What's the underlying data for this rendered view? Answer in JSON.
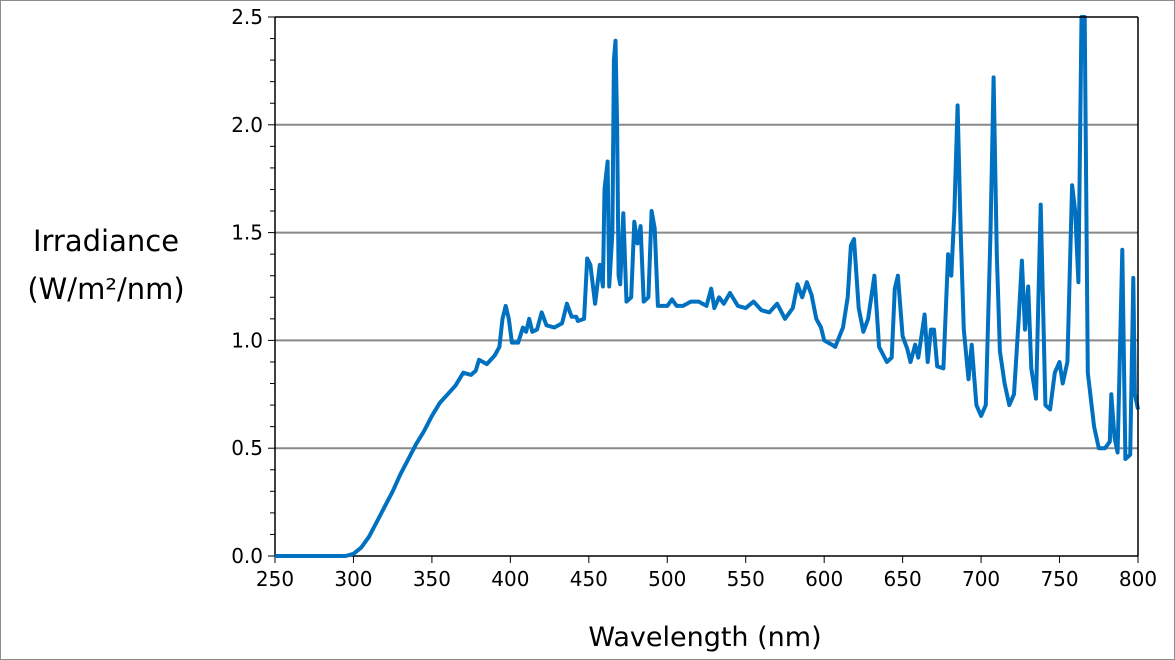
{
  "chart_data": {
    "type": "line",
    "title": "",
    "xlabel": "Wavelength (nm)",
    "ylabel_line1": "Irradiance",
    "ylabel_line2": "(W/m²/nm)",
    "xlim": [
      250,
      800
    ],
    "ylim": [
      0,
      2.5
    ],
    "xticks": [
      "250",
      "300",
      "350",
      "400",
      "450",
      "500",
      "550",
      "600",
      "650",
      "700",
      "750",
      "800"
    ],
    "yticks": [
      "0.0",
      "0.5",
      "1.0",
      "1.5",
      "2.0",
      "2.5"
    ],
    "grid": "horizontal",
    "legend": "none",
    "line_color": "#0070c0",
    "series": [
      {
        "x": [
          250,
          295,
          300,
          305,
          310,
          315,
          320,
          325,
          330,
          335,
          340,
          345,
          350,
          355,
          360,
          365,
          370,
          375,
          378,
          380,
          385,
          390,
          393,
          395,
          397,
          399,
          401,
          405,
          408,
          410,
          412,
          414,
          417,
          420,
          423,
          428,
          433,
          436,
          439,
          442,
          443,
          447,
          449,
          451,
          454,
          457,
          459,
          460,
          462,
          463,
          465,
          466,
          467,
          468,
          469,
          470,
          472,
          474,
          477,
          479,
          481,
          483,
          485,
          488,
          490,
          492,
          494,
          500,
          503,
          506,
          510,
          515,
          520,
          525,
          528,
          530,
          533,
          536,
          540,
          545,
          550,
          555,
          560,
          565,
          570,
          575,
          580,
          583,
          586,
          589,
          592,
          595,
          598,
          600,
          605,
          607,
          612,
          615,
          617,
          619,
          622,
          625,
          628,
          632,
          635,
          640,
          643,
          645,
          647,
          650,
          653,
          655,
          658,
          660,
          664,
          666,
          668,
          670,
          672,
          676,
          679,
          681,
          683,
          685,
          687,
          689,
          692,
          694,
          697,
          700,
          703,
          706,
          708,
          710,
          712,
          715,
          718,
          721,
          724,
          726,
          728,
          730,
          732,
          735,
          738,
          741,
          744,
          747,
          750,
          752,
          755,
          758,
          760,
          762,
          764,
          766,
          768,
          772,
          775,
          779,
          782,
          783,
          785,
          787,
          790,
          792,
          795,
          797,
          798,
          800
        ],
        "y": [
          0,
          0,
          0.01,
          0.04,
          0.09,
          0.16,
          0.23,
          0.3,
          0.38,
          0.45,
          0.52,
          0.58,
          0.65,
          0.71,
          0.75,
          0.79,
          0.85,
          0.84,
          0.86,
          0.91,
          0.89,
          0.93,
          0.97,
          1.1,
          1.16,
          1.1,
          0.99,
          0.99,
          1.06,
          1.04,
          1.1,
          1.04,
          1.05,
          1.13,
          1.07,
          1.06,
          1.08,
          1.17,
          1.11,
          1.11,
          1.09,
          1.1,
          1.38,
          1.35,
          1.17,
          1.35,
          1.25,
          1.7,
          1.83,
          1.25,
          1.5,
          2.3,
          2.39,
          2.0,
          1.3,
          1.26,
          1.59,
          1.18,
          1.2,
          1.55,
          1.45,
          1.53,
          1.18,
          1.2,
          1.6,
          1.52,
          1.16,
          1.16,
          1.19,
          1.16,
          1.16,
          1.18,
          1.18,
          1.16,
          1.24,
          1.15,
          1.2,
          1.17,
          1.22,
          1.16,
          1.15,
          1.18,
          1.14,
          1.13,
          1.17,
          1.1,
          1.15,
          1.26,
          1.2,
          1.27,
          1.21,
          1.1,
          1.06,
          1.0,
          0.98,
          0.97,
          1.06,
          1.2,
          1.44,
          1.47,
          1.15,
          1.04,
          1.1,
          1.3,
          0.97,
          0.9,
          0.92,
          1.24,
          1.3,
          1.02,
          0.96,
          0.9,
          0.98,
          0.92,
          1.12,
          0.9,
          1.05,
          1.05,
          0.88,
          0.87,
          1.4,
          1.3,
          1.6,
          2.09,
          1.5,
          1.05,
          0.82,
          0.98,
          0.7,
          0.65,
          0.7,
          1.5,
          2.22,
          1.4,
          0.95,
          0.8,
          0.7,
          0.75,
          1.1,
          1.37,
          1.05,
          1.25,
          0.87,
          0.73,
          1.63,
          0.7,
          0.68,
          0.85,
          0.9,
          0.8,
          0.9,
          1.72,
          1.6,
          1.27,
          2.5,
          2.5,
          0.85,
          0.6,
          0.5,
          0.5,
          0.53,
          0.75,
          0.55,
          0.48,
          1.42,
          0.45,
          0.47,
          1.29,
          0.75,
          0.68
        ]
      }
    ]
  }
}
